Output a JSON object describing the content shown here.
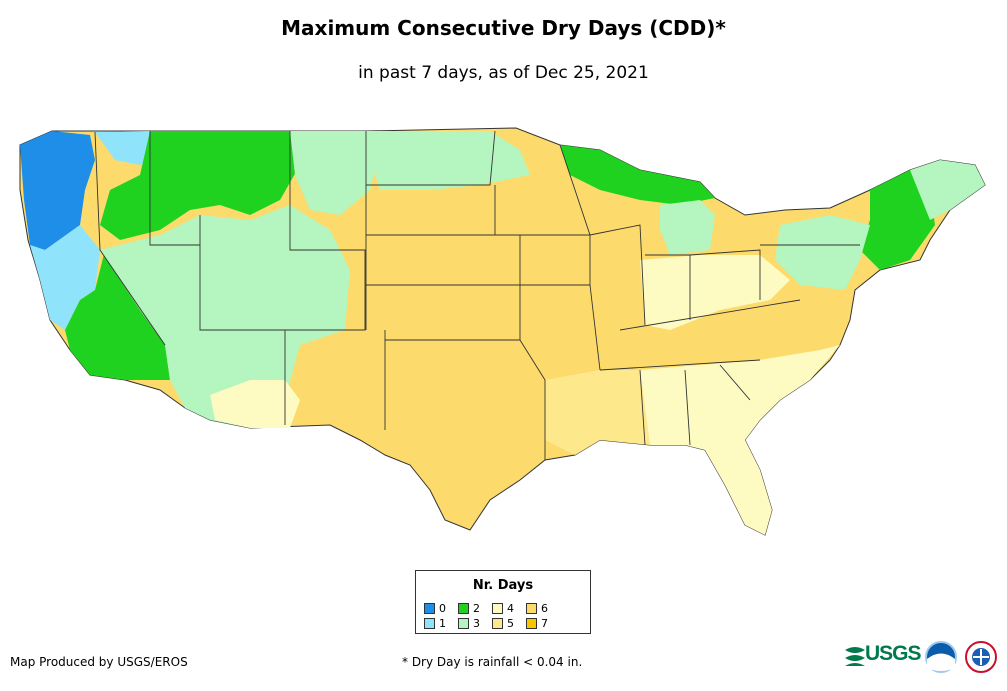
{
  "title": "Maximum Consecutive Dry Days (CDD)*",
  "subtitle": "in past 7 days, as of Dec 25, 2021",
  "legend": {
    "title": "Nr. Days",
    "items": [
      {
        "label": "0",
        "color": "#1e8ee8"
      },
      {
        "label": "1",
        "color": "#8fe3fa"
      },
      {
        "label": "2",
        "color": "#1fd21f"
      },
      {
        "label": "3",
        "color": "#b4f5c0"
      },
      {
        "label": "4",
        "color": "#fdfbc2"
      },
      {
        "label": "5",
        "color": "#fde98c"
      },
      {
        "label": "6",
        "color": "#fcdb6c"
      },
      {
        "label": "7",
        "color": "#f9c600"
      }
    ]
  },
  "credit": "Map Produced by USGS/EROS",
  "footnote": "* Dry Day is rainfall < 0.04 in.",
  "logos": {
    "usgs": "USGS",
    "noaa": "noaa-logo-icon",
    "nws": "nws-logo-icon"
  }
}
